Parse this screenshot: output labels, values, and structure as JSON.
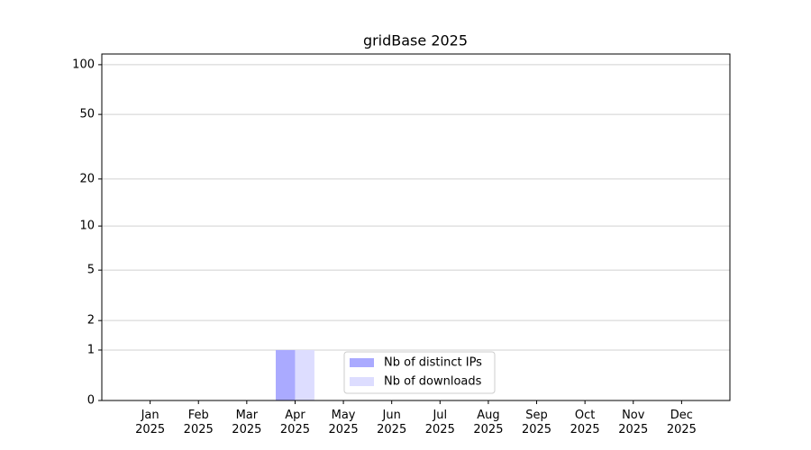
{
  "chart_data": {
    "type": "bar",
    "title": "gridBase 2025",
    "categories": [
      "Jan 2025",
      "Feb 2025",
      "Mar 2025",
      "Apr 2025",
      "May 2025",
      "Jun 2025",
      "Jul 2025",
      "Aug 2025",
      "Sep 2025",
      "Oct 2025",
      "Nov 2025",
      "Dec 2025"
    ],
    "series": [
      {
        "name": "Nb of distinct IPs",
        "color": "#aaaaff",
        "values": [
          0,
          0,
          0,
          1,
          0,
          0,
          0,
          0,
          0,
          0,
          0,
          0
        ]
      },
      {
        "name": "Nb of downloads",
        "color": "#ddddff",
        "values": [
          0,
          0,
          0,
          1,
          0,
          0,
          0,
          0,
          0,
          0,
          0,
          0
        ]
      }
    ],
    "yscale": "log1p",
    "ylim": [
      0,
      116
    ],
    "yticks": [
      0,
      1,
      2,
      5,
      10,
      20,
      50,
      100
    ],
    "grid": true,
    "legend": "lower center"
  }
}
